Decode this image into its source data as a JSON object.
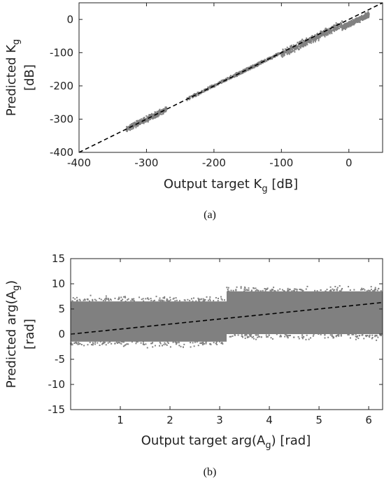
{
  "chart_data": [
    {
      "type": "scatter",
      "xlabel": "Output target K",
      "xlabel_sub": "g",
      "xlabel_unit": " [dB]",
      "ylabel": "Predicted K",
      "ylabel_sub": "g",
      "ylabel_unit": "[dB]",
      "xlim": [
        -400,
        50
      ],
      "ylim": [
        -400,
        50
      ],
      "xticks": [
        -400,
        -300,
        -200,
        -100,
        0
      ],
      "yticks": [
        -400,
        -300,
        -200,
        -100,
        0
      ],
      "xtick_labels": [
        "-400",
        "-300",
        "-200",
        "-100",
        "0"
      ],
      "ytick_labels": [
        "-400",
        "-300",
        "-200",
        "-100",
        "0"
      ],
      "caption": "(a)",
      "grid": false,
      "point_color": "#808080",
      "reference_line": {
        "style": "dashed",
        "color": "#000000",
        "x": [
          -400,
          50
        ],
        "y": [
          -400,
          50
        ]
      },
      "clusters": [
        {
          "x": [
            -330,
            -270
          ],
          "y_center_offset": 0,
          "y_spread": 12
        },
        {
          "x": [
            -240,
            -100
          ],
          "y_center_offset": 0,
          "y_spread": 7
        },
        {
          "x": [
            -170,
            -130
          ],
          "y_center_offset": 0,
          "y_spread": 6
        },
        {
          "x": [
            -100,
            -10
          ],
          "y_center_offset": -5,
          "y_spread": 16
        },
        {
          "x": [
            -10,
            30
          ],
          "y_center_offset": -15,
          "y_spread": 12
        }
      ]
    },
    {
      "type": "scatter",
      "xlabel": "Output target arg(A",
      "xlabel_sub": "g",
      "xlabel_unit": ") [rad]",
      "ylabel": "Predicted arg(A",
      "ylabel_sub": "g",
      "ylabel_unit": "[rad]",
      "ylabel_close": ")",
      "xlim": [
        0,
        6.28
      ],
      "ylim": [
        -15,
        15
      ],
      "xticks": [
        1,
        2,
        3,
        4,
        5,
        6
      ],
      "yticks": [
        -15,
        -10,
        -5,
        0,
        5,
        10,
        15
      ],
      "xtick_labels": [
        "1",
        "2",
        "3",
        "4",
        "5",
        "6"
      ],
      "ytick_labels": [
        "-15",
        "-10",
        "-5",
        "0",
        "5",
        "10",
        "15"
      ],
      "caption": "(b)",
      "grid": false,
      "point_color": "#808080",
      "reference_line": {
        "style": "dashed",
        "color": "#000000",
        "x": [
          0,
          6.28
        ],
        "y": [
          0,
          6.28
        ]
      },
      "bands": [
        {
          "x": [
            0,
            3.14
          ],
          "y_low": -1.5,
          "y_high": 6.5
        },
        {
          "x": [
            3.14,
            6.28
          ],
          "y_low": 0.0,
          "y_high": 8.5
        }
      ]
    }
  ]
}
